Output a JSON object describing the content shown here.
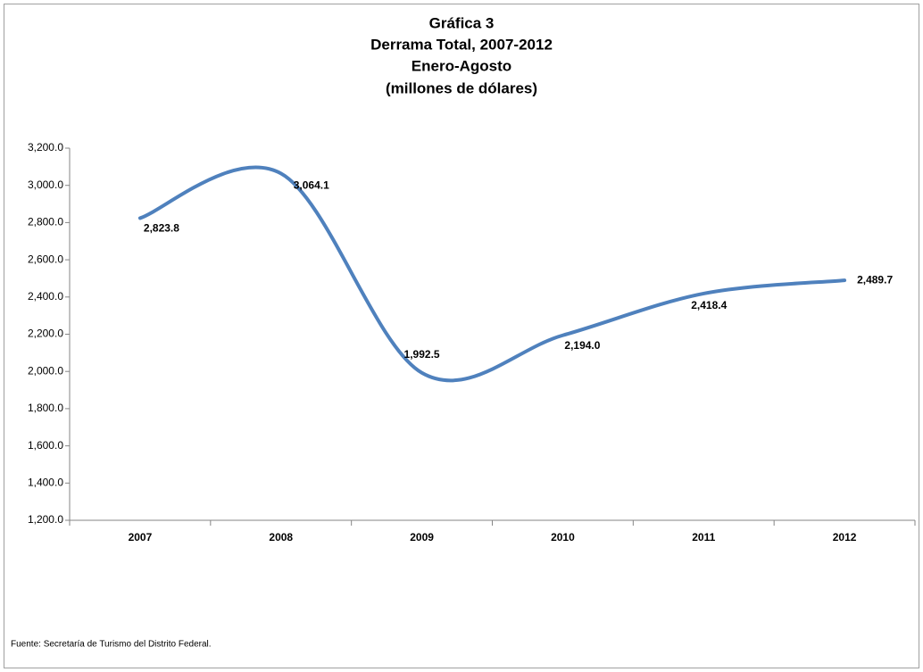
{
  "chart_data": {
    "type": "line",
    "title": [
      "Gráfica 3",
      "Derrama Total, 2007-2012",
      "Enero-Agosto",
      "(millones de dólares)"
    ],
    "categories": [
      "2007",
      "2008",
      "2009",
      "2010",
      "2011",
      "2012"
    ],
    "values": [
      2823.8,
      3064.1,
      1992.5,
      2194.0,
      2418.4,
      2489.7
    ],
    "value_labels": [
      "2,823.8",
      "3,064.1",
      "1,992.5",
      "2,194.0",
      "2,418.4",
      "2,489.7"
    ],
    "color": "#4f81bd",
    "smooth": true,
    "ylim": [
      1200,
      3200
    ],
    "yticks": [
      {
        "value": 1200,
        "label": "1,200.0"
      },
      {
        "value": 1400,
        "label": "1,400.0"
      },
      {
        "value": 1600,
        "label": "1,600.0"
      },
      {
        "value": 1800,
        "label": "1,800.0"
      },
      {
        "value": 2000,
        "label": "2,000.0"
      },
      {
        "value": 2200,
        "label": "2,200.0"
      },
      {
        "value": 2400,
        "label": "2,400.0"
      },
      {
        "value": 2600,
        "label": "2,600.0"
      },
      {
        "value": 2800,
        "label": "2,800.0"
      },
      {
        "value": 3000,
        "label": "3,000.0"
      },
      {
        "value": 3200,
        "label": "3,200.0"
      }
    ],
    "grid": false,
    "source": "Fuente: Secretaría de Turismo del Distrito Federal."
  }
}
